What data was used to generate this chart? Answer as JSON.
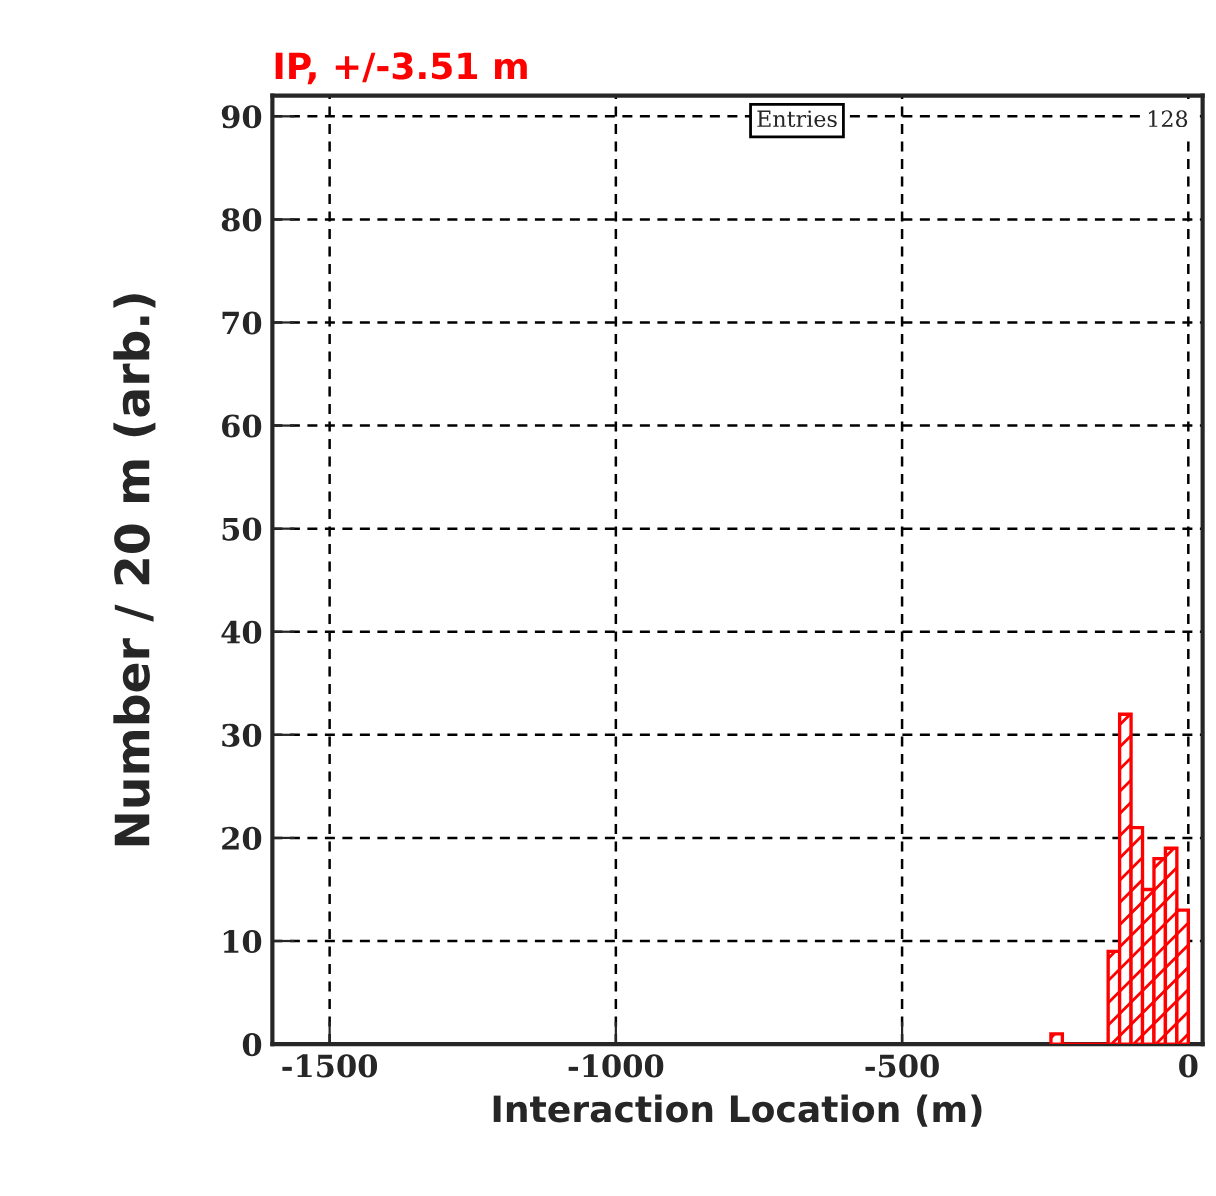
{
  "chart_data": {
    "type": "histogram",
    "title": "IP, +/-3.51 m",
    "xlabel": "Interaction Location (m)",
    "ylabel": "Number / 20 m (arb.)",
    "bins": [
      -240,
      -220,
      -200,
      -180,
      -160,
      -140,
      -120,
      -100,
      -80,
      -60,
      -40,
      -20,
      0
    ],
    "values": [
      1,
      0,
      0,
      0,
      0,
      9,
      32,
      21,
      15,
      18,
      19,
      13
    ],
    "color": "#ff0000",
    "xlim": [
      -1600,
      25
    ],
    "xticks": [
      -1500,
      -1000,
      -500,
      0
    ],
    "ylim": [
      0,
      92
    ],
    "yticks": [
      0,
      10,
      20,
      30,
      40,
      50,
      60,
      70,
      80,
      90
    ],
    "grid": true,
    "legend": false,
    "annotations": [
      "Entries",
      "128"
    ]
  }
}
